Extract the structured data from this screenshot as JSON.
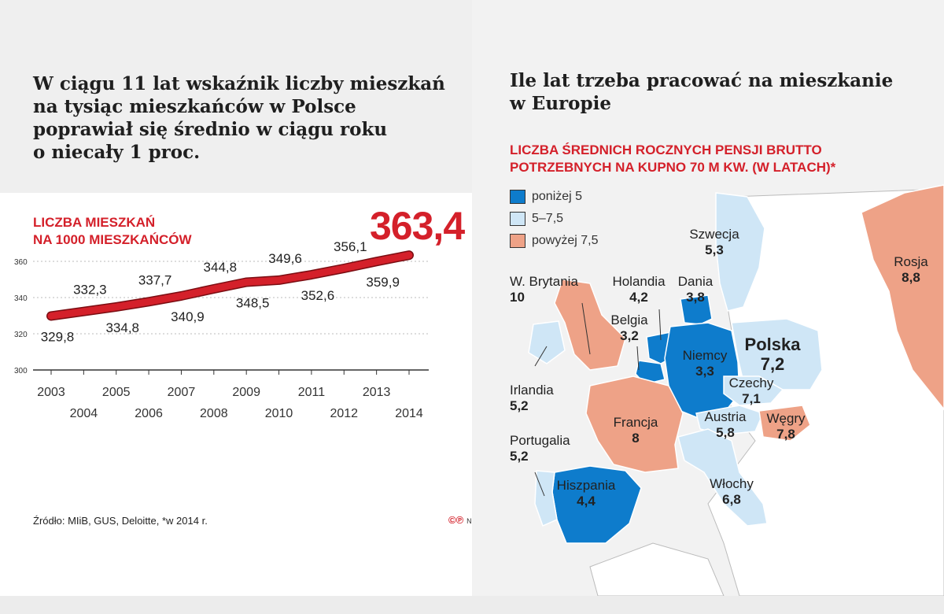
{
  "left": {
    "headline": [
      "W ciągu 11 lat wskaźnik liczby mieszkań",
      "na tysiąc mieszkańców w Polsce",
      "poprawiał się średnio w ciągu roku",
      "o niecały 1 proc."
    ],
    "chart_label": [
      "LICZBA MIESZKAŃ",
      "NA 1000 MIESZKAŃCÓW"
    ],
    "highlight_value": "363,4",
    "source": "Źródło: MIiB, GUS, Deloitte, *w 2014 r.",
    "logo": "©℗",
    "logo_author": "NS"
  },
  "right": {
    "headline": [
      "Ile lat trzeba pracować na mieszkanie",
      "w Europie"
    ],
    "subtitle": [
      "LICZBA ŚREDNICH ROCZNYCH PENSJI BRUTTO",
      "POTRZEBNYCH NA KUPNO 70 M KW. (W LATACH)*"
    ],
    "legend": [
      {
        "label": "poniżej 5",
        "color": "#0e7ccc"
      },
      {
        "label": "5–7,5",
        "color": "#cfe6f6"
      },
      {
        "label": "powyżej 7,5",
        "color": "#eea287"
      }
    ],
    "countries": [
      {
        "name": "Szwecja",
        "value": "5,3"
      },
      {
        "name": "Rosja",
        "value": "8,8"
      },
      {
        "name": "W. Brytania",
        "value": "10"
      },
      {
        "name": "Holandia",
        "value": "4,2"
      },
      {
        "name": "Dania",
        "value": "3,8"
      },
      {
        "name": "Belgia",
        "value": "3,2"
      },
      {
        "name": "Polska",
        "value": "7,2"
      },
      {
        "name": "Niemcy",
        "value": "3,3"
      },
      {
        "name": "Czechy",
        "value": "7,1"
      },
      {
        "name": "Irlandia",
        "value": "5,2"
      },
      {
        "name": "Austria",
        "value": "5,8"
      },
      {
        "name": "Węgry",
        "value": "7,8"
      },
      {
        "name": "Francja",
        "value": "8"
      },
      {
        "name": "Portugalia",
        "value": "5,2"
      },
      {
        "name": "Hiszpania",
        "value": "4,4"
      },
      {
        "name": "Włochy",
        "value": "6,8"
      }
    ]
  },
  "chart_data": [
    {
      "type": "line",
      "x": [
        2003,
        2004,
        2005,
        2006,
        2007,
        2008,
        2009,
        2010,
        2011,
        2012,
        2013,
        2014
      ],
      "values": [
        329.8,
        332.3,
        334.8,
        337.7,
        340.9,
        344.8,
        348.5,
        349.6,
        352.6,
        356.1,
        359.9,
        363.4
      ],
      "value_labels": [
        "329,8",
        "332,3",
        "334,8",
        "337,7",
        "340,9",
        "344,8",
        "348,5",
        "349,6",
        "352,6",
        "356,1",
        "359,9",
        "363,4"
      ],
      "label_positions": [
        "below",
        "above",
        "below",
        "above",
        "below",
        "above",
        "below",
        "above",
        "below",
        "above",
        "below",
        "none"
      ],
      "x_ticks_top": [
        "2003",
        "2005",
        "2007",
        "2009",
        "2011",
        "2013"
      ],
      "x_ticks_bottom": [
        "2004",
        "2006",
        "2008",
        "2010",
        "2012",
        "2014"
      ],
      "y_ticks": [
        "360",
        "340",
        "320",
        "300"
      ],
      "ylim": [
        300,
        370
      ],
      "grid": true,
      "line_color": "#d4202a"
    }
  ]
}
